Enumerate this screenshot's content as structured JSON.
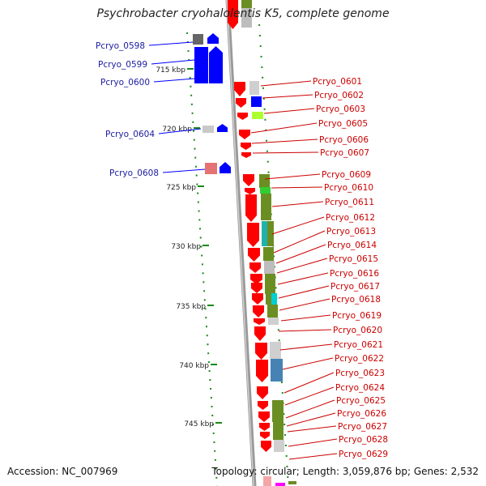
{
  "title": "Psychrobacter cryohalolentis K5, complete genome",
  "footer": {
    "accession": "Accession: NC_007969",
    "topology": "Topology: circular; Length: 3,059,876 bp; Genes: 2,532"
  },
  "colors": {
    "forward_strand": "#ff0000",
    "reverse_strand": "#0000ff",
    "left_label": "#1a1aa0",
    "right_label": "#cc0000",
    "backbone": "#999999",
    "tick": "#1a8a1a",
    "cog_olive": "#6b8e23",
    "cog_teal": "#20b2aa",
    "cog_steel": "#4682b4",
    "cog_grey": "#cfcfcf"
  },
  "scale_labels": [
    "715 kbp",
    "720 kbp",
    "725 kbp",
    "730 kbp",
    "735 kbp",
    "740 kbp",
    "745 kbp"
  ],
  "left_genes": [
    "Pcryo_0598",
    "Pcryo_0599",
    "Pcryo_0600",
    "Pcryo_0604",
    "Pcryo_0608"
  ],
  "right_genes": [
    "Pcryo_0601",
    "Pcryo_0602",
    "Pcryo_0603",
    "Pcryo_0605",
    "Pcryo_0606",
    "Pcryo_0607",
    "Pcryo_0609",
    "Pcryo_0610",
    "Pcryo_0611",
    "Pcryo_0612",
    "Pcryo_0613",
    "Pcryo_0614",
    "Pcryo_0615",
    "Pcryo_0616",
    "Pcryo_0617",
    "Pcryo_0618",
    "Pcryo_0619",
    "Pcryo_0620",
    "Pcryo_0621",
    "Pcryo_0622",
    "Pcryo_0623",
    "Pcryo_0624",
    "Pcryo_0625",
    "Pcryo_0626",
    "Pcryo_0627",
    "Pcryo_0628",
    "Pcryo_0629"
  ]
}
